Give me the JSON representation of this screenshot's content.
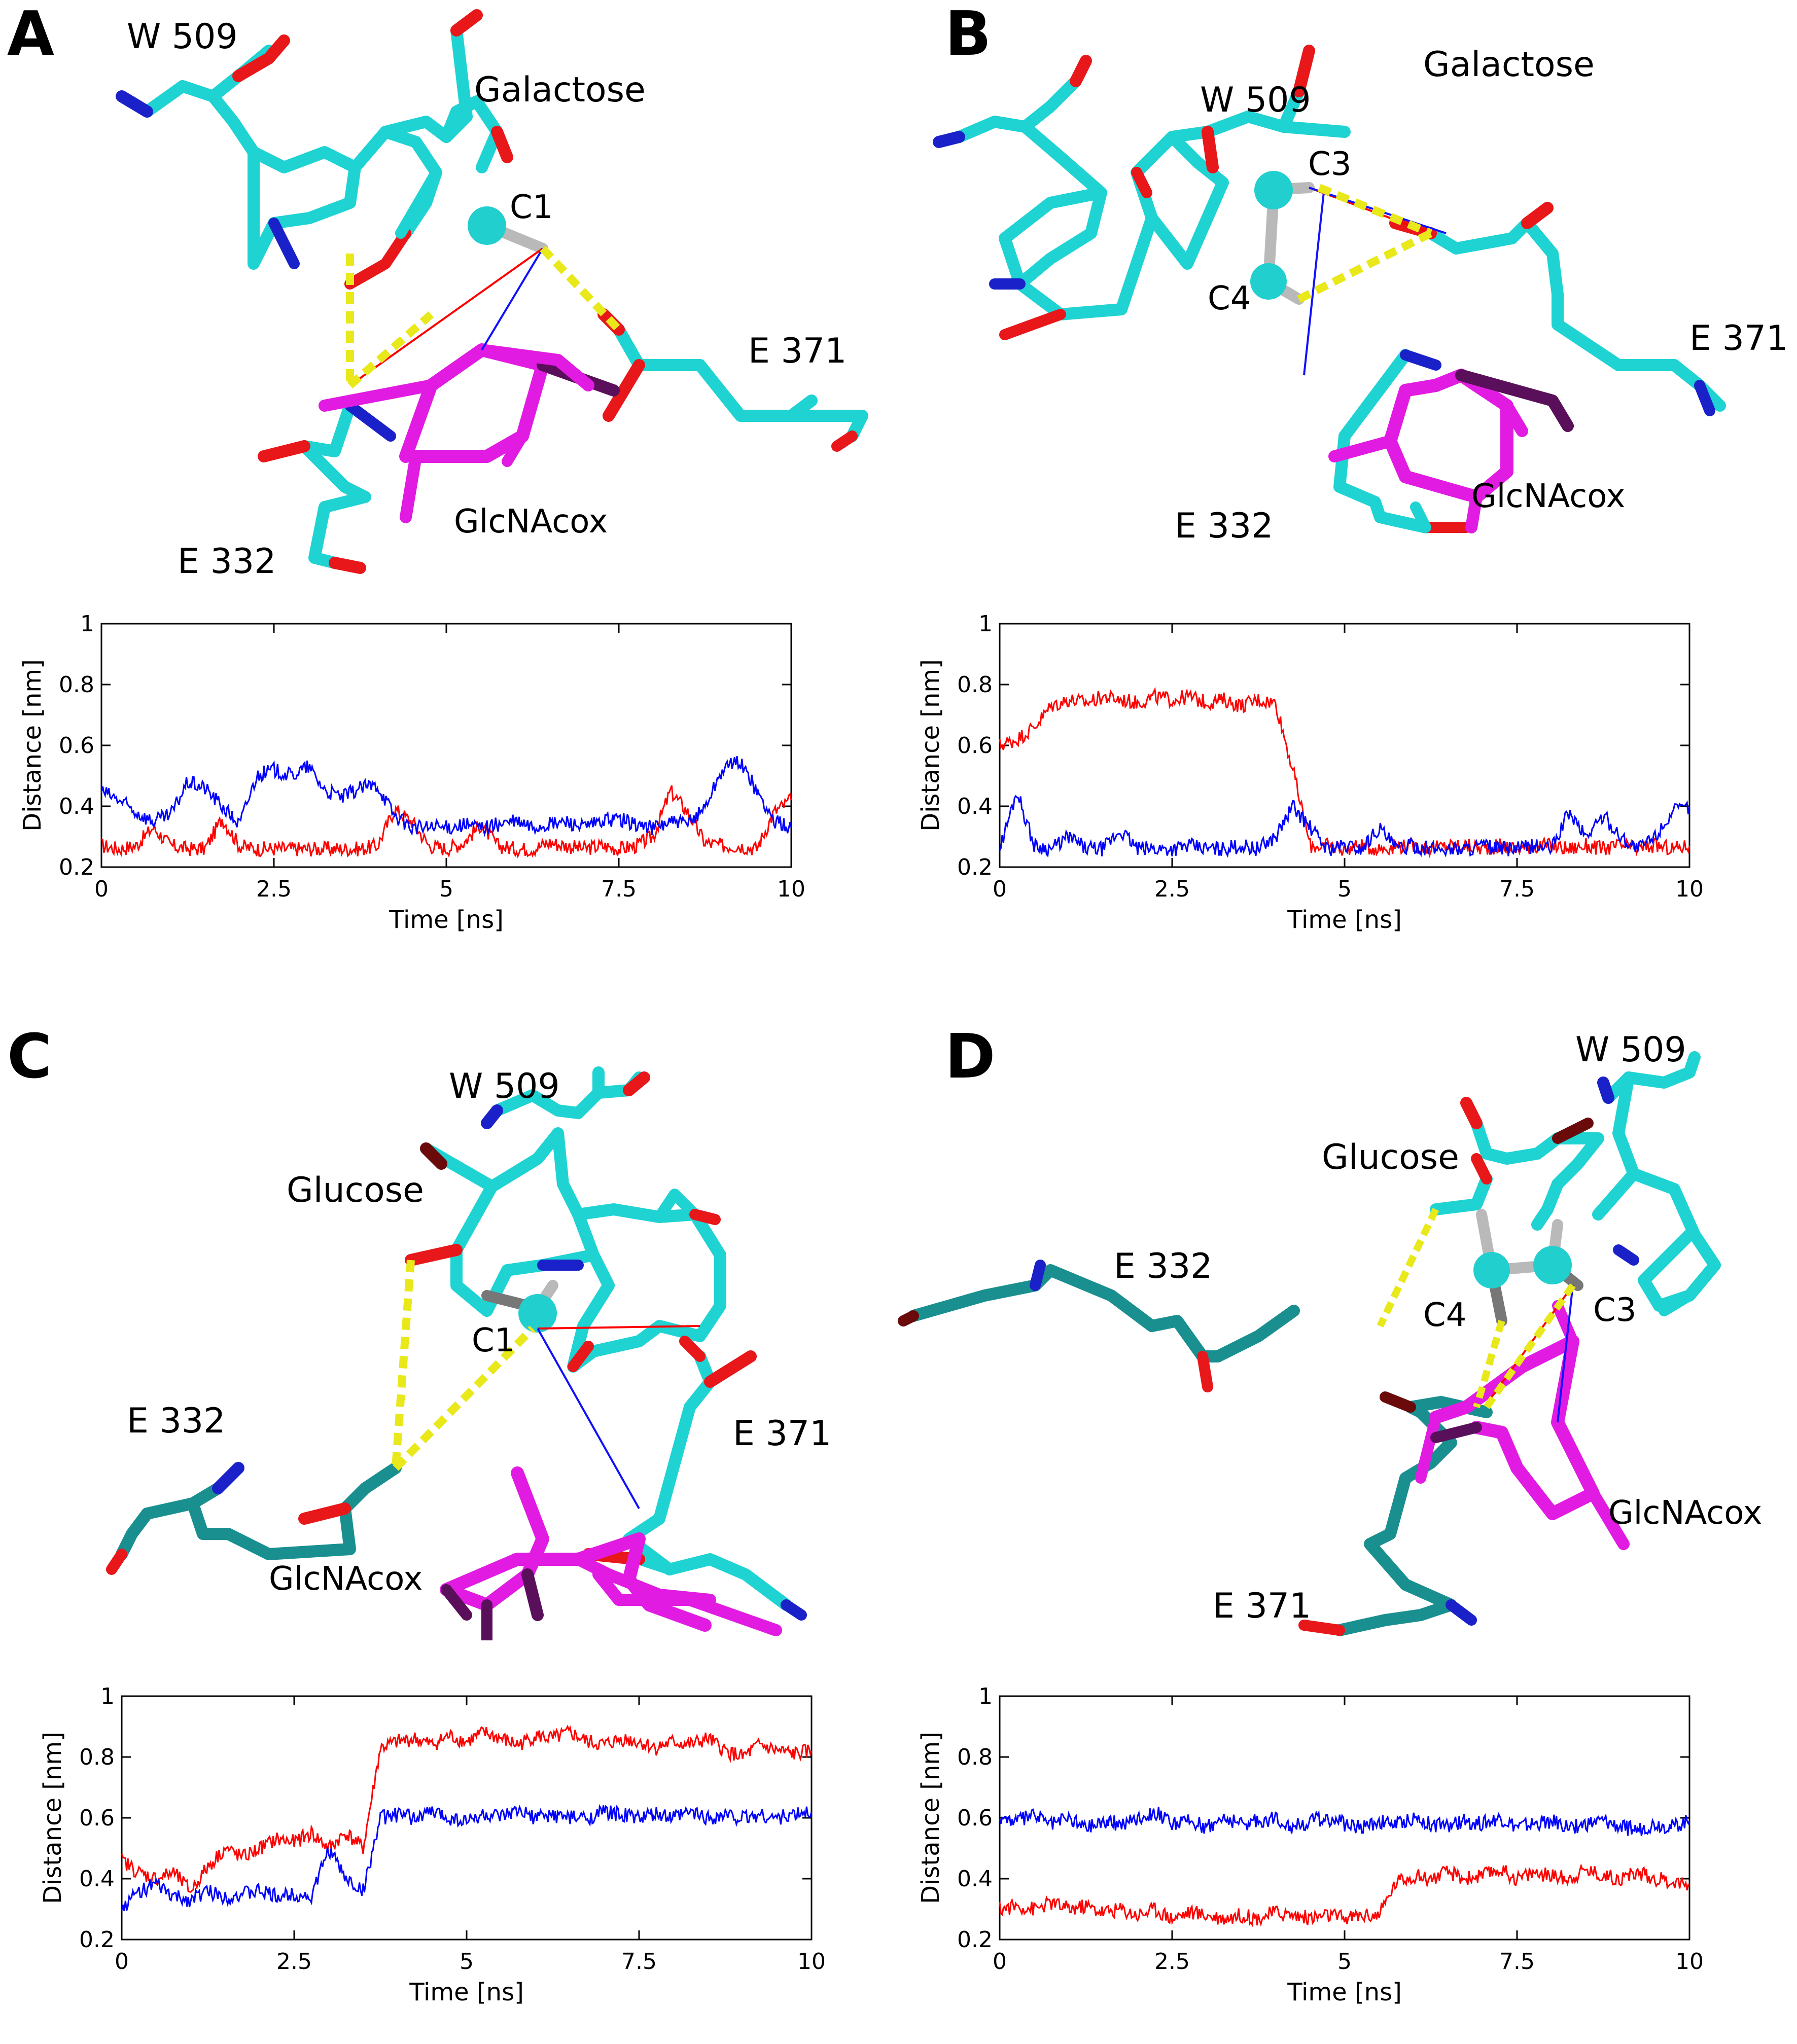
{
  "figure": {
    "panels": [
      {
        "id": "A",
        "sugar": "Galactose",
        "residues": [
          "W 509",
          "E 371",
          "E 332"
        ],
        "ligand": "GlcNAcox",
        "atoms": [
          "C1"
        ]
      },
      {
        "id": "B",
        "sugar": "Galactose",
        "residues": [
          "W 509",
          "E 371",
          "E 332"
        ],
        "ligand": "GlcNAcox",
        "atoms": [
          "C3",
          "C4"
        ]
      },
      {
        "id": "C",
        "sugar": "Glucose",
        "residues": [
          "W 509",
          "E 371",
          "E 332"
        ],
        "ligand": "GlcNAcox",
        "atoms": [
          "C1"
        ]
      },
      {
        "id": "D",
        "sugar": "Glucose",
        "residues": [
          "W 509",
          "E 332",
          "E 371"
        ],
        "ligand": "GlcNAcox",
        "atoms": [
          "C4",
          "C3"
        ]
      }
    ],
    "colors": {
      "carbon": "#1fd3d3",
      "dark_carbon": "#1a8f8f",
      "oxygen": "#e8171a",
      "dark_oxygen": "#6a0a0a",
      "nitrogen": "#1b21c9",
      "ligand": "#e11be1",
      "ligand_dark": "#5a0f5a",
      "hbond": "#e8e81a",
      "series_red": "#ff0000",
      "series_blue": "#0000ff"
    }
  },
  "chart_data": [
    {
      "panel": "A",
      "type": "line",
      "xlabel": "Time [ns]",
      "ylabel": "Distance [nm]",
      "xlim": [
        0,
        10
      ],
      "ylim": [
        0.2,
        1
      ],
      "xticks": [
        0,
        2.5,
        5,
        7.5,
        10
      ],
      "xtick_labels": [
        "0",
        "2.5",
        "5",
        "7.5",
        "10"
      ],
      "yticks": [
        0.2,
        0.4,
        0.6,
        0.8,
        1
      ],
      "ytick_labels": [
        "0.2",
        "0.4",
        "0.6",
        "0.8",
        "1"
      ],
      "grid": false,
      "legend": "none",
      "series": [
        {
          "color": "red",
          "x": [
            0,
            0.25,
            0.5,
            0.75,
            1,
            1.25,
            1.5,
            1.75,
            2,
            2.25,
            2.5,
            2.75,
            3,
            3.25,
            3.5,
            3.75,
            4,
            4.25,
            4.5,
            4.75,
            5,
            5.25,
            5.5,
            5.75,
            6,
            6.25,
            6.5,
            6.75,
            7,
            7.25,
            7.5,
            7.75,
            8,
            8.25,
            8.5,
            8.75,
            9,
            9.25,
            9.5,
            9.75,
            10
          ],
          "values": [
            0.27,
            0.26,
            0.27,
            0.33,
            0.27,
            0.26,
            0.26,
            0.36,
            0.27,
            0.26,
            0.26,
            0.26,
            0.26,
            0.26,
            0.26,
            0.26,
            0.27,
            0.39,
            0.35,
            0.27,
            0.26,
            0.28,
            0.34,
            0.27,
            0.26,
            0.26,
            0.28,
            0.27,
            0.26,
            0.27,
            0.26,
            0.27,
            0.3,
            0.45,
            0.38,
            0.28,
            0.27,
            0.27,
            0.26,
            0.38,
            0.42
          ]
        },
        {
          "color": "blue",
          "x": [
            0,
            0.25,
            0.5,
            0.75,
            1,
            1.25,
            1.5,
            1.75,
            2,
            2.25,
            2.5,
            2.75,
            3,
            3.25,
            3.5,
            3.75,
            4,
            4.25,
            4.5,
            4.75,
            5,
            5.25,
            5.5,
            5.75,
            6,
            6.25,
            6.5,
            6.75,
            7,
            7.25,
            7.5,
            7.75,
            8,
            8.25,
            8.5,
            8.75,
            9,
            9.25,
            9.5,
            9.75,
            10
          ],
          "values": [
            0.45,
            0.42,
            0.38,
            0.35,
            0.37,
            0.48,
            0.46,
            0.4,
            0.34,
            0.5,
            0.52,
            0.5,
            0.53,
            0.45,
            0.43,
            0.46,
            0.47,
            0.37,
            0.33,
            0.33,
            0.33,
            0.34,
            0.33,
            0.34,
            0.35,
            0.33,
            0.34,
            0.35,
            0.33,
            0.35,
            0.36,
            0.34,
            0.33,
            0.35,
            0.34,
            0.4,
            0.52,
            0.55,
            0.45,
            0.35,
            0.33
          ]
        }
      ]
    },
    {
      "panel": "B",
      "type": "line",
      "xlabel": "Time [ns]",
      "ylabel": "Distance [nm]",
      "xlim": [
        0,
        10
      ],
      "ylim": [
        0.2,
        1
      ],
      "xticks": [
        0,
        2.5,
        5,
        7.5,
        10
      ],
      "xtick_labels": [
        "0",
        "2.5",
        "5",
        "7.5",
        "10"
      ],
      "yticks": [
        0.2,
        0.4,
        0.6,
        0.8,
        1
      ],
      "ytick_labels": [
        "0.2",
        "0.4",
        "0.6",
        "0.8",
        "1"
      ],
      "grid": false,
      "legend": "none",
      "series": [
        {
          "color": "red",
          "x": [
            0,
            0.25,
            0.5,
            0.75,
            1,
            1.25,
            1.5,
            1.75,
            2,
            2.25,
            2.5,
            2.75,
            3,
            3.25,
            3.5,
            3.75,
            4,
            4.25,
            4.5,
            4.75,
            5,
            5.25,
            5.5,
            5.75,
            6,
            6.25,
            6.5,
            6.75,
            7,
            7.25,
            7.5,
            7.75,
            8,
            8.25,
            8.5,
            8.75,
            9,
            9.25,
            9.5,
            9.75,
            10
          ],
          "values": [
            0.6,
            0.62,
            0.66,
            0.73,
            0.75,
            0.74,
            0.76,
            0.75,
            0.74,
            0.76,
            0.75,
            0.76,
            0.74,
            0.75,
            0.73,
            0.75,
            0.74,
            0.52,
            0.27,
            0.27,
            0.26,
            0.27,
            0.26,
            0.27,
            0.27,
            0.26,
            0.27,
            0.27,
            0.26,
            0.27,
            0.26,
            0.27,
            0.27,
            0.26,
            0.27,
            0.26,
            0.27,
            0.26,
            0.27,
            0.26,
            0.27
          ]
        },
        {
          "color": "blue",
          "x": [
            0,
            0.25,
            0.5,
            0.75,
            1,
            1.25,
            1.5,
            1.75,
            2,
            2.25,
            2.5,
            2.75,
            3,
            3.25,
            3.5,
            3.75,
            4,
            4.25,
            4.5,
            4.75,
            5,
            5.25,
            5.5,
            5.75,
            6,
            6.25,
            6.5,
            6.75,
            7,
            7.25,
            7.5,
            7.75,
            8,
            8.25,
            8.5,
            8.75,
            9,
            9.25,
            9.5,
            9.75,
            10
          ],
          "values": [
            0.26,
            0.45,
            0.27,
            0.26,
            0.3,
            0.26,
            0.26,
            0.32,
            0.26,
            0.26,
            0.26,
            0.27,
            0.26,
            0.26,
            0.27,
            0.26,
            0.3,
            0.4,
            0.33,
            0.26,
            0.27,
            0.26,
            0.33,
            0.26,
            0.27,
            0.26,
            0.26,
            0.26,
            0.27,
            0.26,
            0.26,
            0.27,
            0.26,
            0.38,
            0.3,
            0.37,
            0.3,
            0.26,
            0.3,
            0.38,
            0.4
          ]
        }
      ]
    },
    {
      "panel": "C",
      "type": "line",
      "xlabel": "Time [ns]",
      "ylabel": "Distance [nm]",
      "xlim": [
        0,
        10
      ],
      "ylim": [
        0.2,
        1
      ],
      "xticks": [
        0,
        2.5,
        5,
        7.5,
        10
      ],
      "xtick_labels": [
        "0",
        "2.5",
        "5",
        "7.5",
        "10"
      ],
      "yticks": [
        0.2,
        0.4,
        0.6,
        0.8,
        1
      ],
      "ytick_labels": [
        "0.2",
        "0.4",
        "0.6",
        "0.8",
        "1"
      ],
      "grid": false,
      "legend": "none",
      "series": [
        {
          "color": "red",
          "x": [
            0,
            0.25,
            0.5,
            0.75,
            1,
            1.25,
            1.5,
            1.75,
            2,
            2.25,
            2.5,
            2.75,
            3,
            3.25,
            3.5,
            3.75,
            4,
            4.25,
            4.5,
            4.75,
            5,
            5.25,
            5.5,
            5.75,
            6,
            6.25,
            6.5,
            6.75,
            7,
            7.25,
            7.5,
            7.75,
            8,
            8.25,
            8.5,
            8.75,
            9,
            9.25,
            9.5,
            9.75,
            10
          ],
          "values": [
            0.46,
            0.42,
            0.4,
            0.42,
            0.36,
            0.44,
            0.5,
            0.47,
            0.5,
            0.53,
            0.52,
            0.55,
            0.5,
            0.55,
            0.5,
            0.83,
            0.85,
            0.86,
            0.84,
            0.87,
            0.85,
            0.88,
            0.86,
            0.84,
            0.87,
            0.86,
            0.88,
            0.85,
            0.84,
            0.86,
            0.85,
            0.83,
            0.85,
            0.84,
            0.86,
            0.82,
            0.8,
            0.84,
            0.82,
            0.81,
            0.82
          ]
        },
        {
          "color": "blue",
          "x": [
            0,
            0.25,
            0.5,
            0.75,
            1,
            1.25,
            1.5,
            1.75,
            2,
            2.25,
            2.5,
            2.75,
            3,
            3.25,
            3.5,
            3.75,
            4,
            4.25,
            4.5,
            4.75,
            5,
            5.25,
            5.5,
            5.75,
            6,
            6.25,
            6.5,
            6.75,
            7,
            7.25,
            7.5,
            7.75,
            8,
            8.25,
            8.5,
            8.75,
            9,
            9.25,
            9.5,
            9.75,
            10
          ],
          "values": [
            0.3,
            0.36,
            0.38,
            0.34,
            0.33,
            0.36,
            0.34,
            0.35,
            0.36,
            0.34,
            0.35,
            0.34,
            0.5,
            0.4,
            0.36,
            0.6,
            0.61,
            0.6,
            0.62,
            0.6,
            0.59,
            0.61,
            0.6,
            0.62,
            0.6,
            0.61,
            0.6,
            0.6,
            0.62,
            0.61,
            0.6,
            0.61,
            0.6,
            0.62,
            0.6,
            0.61,
            0.6,
            0.61,
            0.6,
            0.61,
            0.62
          ]
        }
      ]
    },
    {
      "panel": "D",
      "type": "line",
      "xlabel": "Time [ns]",
      "ylabel": "Distance [nm]",
      "xlim": [
        0,
        10
      ],
      "ylim": [
        0.2,
        1
      ],
      "xticks": [
        0,
        2.5,
        5,
        7.5,
        10
      ],
      "xtick_labels": [
        "0",
        "2.5",
        "5",
        "7.5",
        "10"
      ],
      "yticks": [
        0.2,
        0.4,
        0.6,
        0.8,
        1
      ],
      "ytick_labels": [
        "0.2",
        "0.4",
        "0.6",
        "0.8",
        "1"
      ],
      "grid": false,
      "legend": "none",
      "series": [
        {
          "color": "red",
          "x": [
            0,
            0.25,
            0.5,
            0.75,
            1,
            1.25,
            1.5,
            1.75,
            2,
            2.25,
            2.5,
            2.75,
            3,
            3.25,
            3.5,
            3.75,
            4,
            4.25,
            4.5,
            4.75,
            5,
            5.25,
            5.5,
            5.75,
            6,
            6.25,
            6.5,
            6.75,
            7,
            7.25,
            7.5,
            7.75,
            8,
            8.25,
            8.5,
            8.75,
            9,
            9.25,
            9.5,
            9.75,
            10
          ],
          "values": [
            0.3,
            0.31,
            0.3,
            0.32,
            0.3,
            0.31,
            0.29,
            0.3,
            0.28,
            0.3,
            0.27,
            0.29,
            0.28,
            0.27,
            0.28,
            0.27,
            0.29,
            0.28,
            0.27,
            0.28,
            0.27,
            0.28,
            0.28,
            0.39,
            0.41,
            0.4,
            0.42,
            0.4,
            0.41,
            0.43,
            0.4,
            0.42,
            0.41,
            0.4,
            0.43,
            0.41,
            0.4,
            0.42,
            0.4,
            0.39,
            0.38
          ]
        },
        {
          "color": "blue",
          "x": [
            0,
            0.25,
            0.5,
            0.75,
            1,
            1.25,
            1.5,
            1.75,
            2,
            2.25,
            2.5,
            2.75,
            3,
            3.25,
            3.5,
            3.75,
            4,
            4.25,
            4.5,
            4.75,
            5,
            5.25,
            5.5,
            5.75,
            6,
            6.25,
            6.5,
            6.75,
            7,
            7.25,
            7.5,
            7.75,
            8,
            8.25,
            8.5,
            8.75,
            9,
            9.25,
            9.5,
            9.75,
            10
          ],
          "values": [
            0.6,
            0.59,
            0.61,
            0.58,
            0.6,
            0.57,
            0.59,
            0.58,
            0.6,
            0.62,
            0.58,
            0.59,
            0.57,
            0.6,
            0.58,
            0.59,
            0.6,
            0.57,
            0.59,
            0.6,
            0.58,
            0.57,
            0.59,
            0.58,
            0.6,
            0.58,
            0.57,
            0.59,
            0.58,
            0.6,
            0.57,
            0.58,
            0.59,
            0.57,
            0.58,
            0.59,
            0.57,
            0.56,
            0.58,
            0.57,
            0.59
          ]
        }
      ]
    }
  ]
}
